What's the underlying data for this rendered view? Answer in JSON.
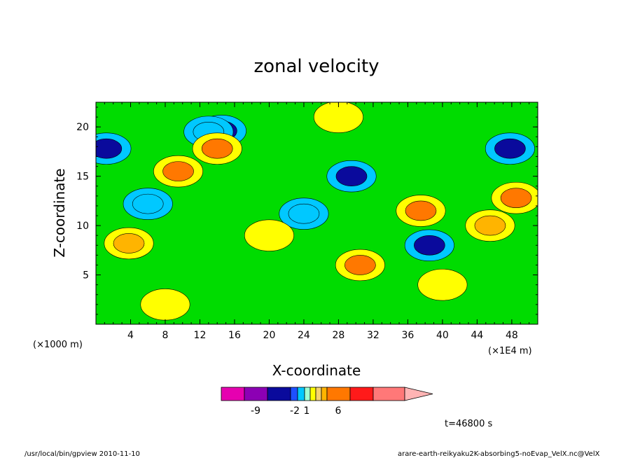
{
  "chart_data": {
    "type": "heatmap",
    "title": "zonal velocity",
    "xlabel": "X-coordinate",
    "ylabel": "Z-coordinate",
    "x_ticks": [
      "4",
      "8",
      "12",
      "16",
      "20",
      "24",
      "28",
      "32",
      "36",
      "40",
      "44",
      "48"
    ],
    "y_ticks": [
      "5",
      "10",
      "15",
      "20"
    ],
    "xlim": [
      0,
      51
    ],
    "ylim": [
      0,
      22.5
    ],
    "x_unit_left": "(×1000 m)",
    "x_unit_right": "(×1E4 m)",
    "colorbar": {
      "colors": [
        "#e600b0",
        "#8c00b4",
        "#0a0a9c",
        "#1e50ff",
        "#00c8ff",
        "#a0ffd2",
        "#ffff00",
        "#f5d26e",
        "#ffb400",
        "#ff7800",
        "#ff1a1a",
        "#ff7878",
        "#ffb4b4"
      ],
      "labels": [
        "-9",
        "-2",
        "1",
        "6"
      ],
      "extend": "right"
    },
    "time_label": "t=46800 s",
    "contour_levels": {
      "background": "#00dc00",
      "features": [
        {
          "x": 1.2,
          "y": 17.8,
          "level": "#0a0a9c"
        },
        {
          "x": 47.8,
          "y": 17.8,
          "level": "#0a0a9c"
        },
        {
          "x": 14.5,
          "y": 19.6,
          "level": "#0a0a9c"
        },
        {
          "x": 29.5,
          "y": 15,
          "level": "#0a0a9c"
        },
        {
          "x": 38.5,
          "y": 8,
          "level": "#0a0a9c"
        },
        {
          "x": 24,
          "y": 11.2,
          "level": "#00c8ff"
        },
        {
          "x": 13,
          "y": 19.5,
          "level": "#00c8ff"
        },
        {
          "x": 6,
          "y": 12.2,
          "level": "#00c8ff"
        },
        {
          "x": 37.5,
          "y": 11.5,
          "level": "#ff7800"
        },
        {
          "x": 14,
          "y": 17.8,
          "level": "#ff7800"
        },
        {
          "x": 30.5,
          "y": 6,
          "level": "#ff7800"
        },
        {
          "x": 48.5,
          "y": 12.8,
          "level": "#ff7800"
        },
        {
          "x": 9.5,
          "y": 15.5,
          "level": "#ff7800"
        },
        {
          "x": 3.8,
          "y": 8.2,
          "level": "#ffb400"
        },
        {
          "x": 45.5,
          "y": 10,
          "level": "#ffb400"
        },
        {
          "x": 20,
          "y": 9,
          "level": "#ffff00"
        },
        {
          "x": 40,
          "y": 4,
          "level": "#ffff00"
        },
        {
          "x": 28,
          "y": 21,
          "level": "#ffff00"
        },
        {
          "x": 8,
          "y": 2,
          "level": "#ffff00"
        }
      ]
    }
  },
  "footer": {
    "left": "/usr/local/bin/gpview  2010-11-10",
    "right": "arare-earth-reikyaku2K-absorbing5-noEvap_VelX.nc@VelX"
  }
}
